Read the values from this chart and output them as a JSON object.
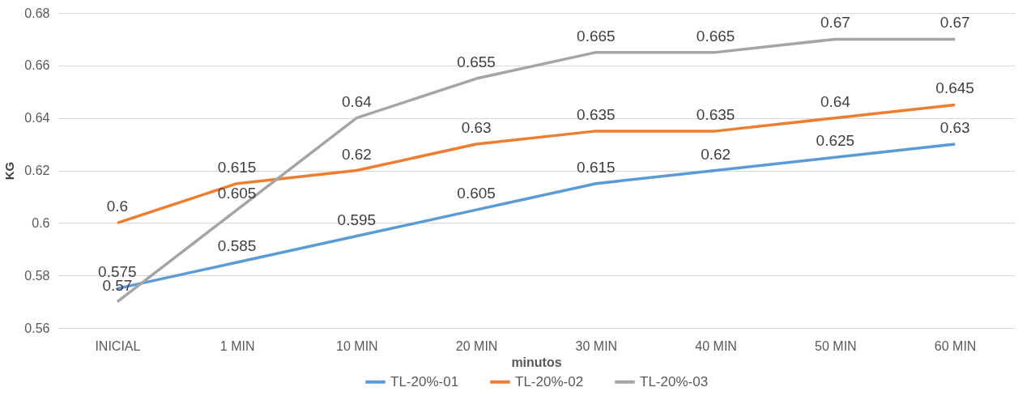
{
  "chart_data": {
    "type": "line",
    "xlabel": "minutos",
    "ylabel": "KG",
    "categories": [
      "INICIAL",
      "1 MIN",
      "10 MIN",
      "20 MIN",
      "30 MIN",
      "40 MIN",
      "50 MIN",
      "60 MIN"
    ],
    "series": [
      {
        "name": "TL-20%-01",
        "color": "#5b9bd5",
        "values": [
          0.575,
          0.585,
          0.595,
          0.605,
          0.615,
          0.62,
          0.625,
          0.63
        ]
      },
      {
        "name": "TL-20%-02",
        "color": "#ed7d31",
        "values": [
          0.6,
          0.615,
          0.62,
          0.63,
          0.635,
          0.635,
          0.64,
          0.645
        ]
      },
      {
        "name": "TL-20%-03",
        "color": "#a5a5a5",
        "values": [
          0.57,
          0.605,
          0.64,
          0.655,
          0.665,
          0.665,
          0.67,
          0.67
        ]
      }
    ],
    "ylim": [
      0.56,
      0.68
    ],
    "yticks": [
      0.56,
      0.58,
      0.6,
      0.62,
      0.64,
      0.66,
      0.68
    ],
    "grid": "y",
    "legend": "bottom",
    "data_labels": true,
    "marker": "none",
    "line_style": "solid"
  }
}
